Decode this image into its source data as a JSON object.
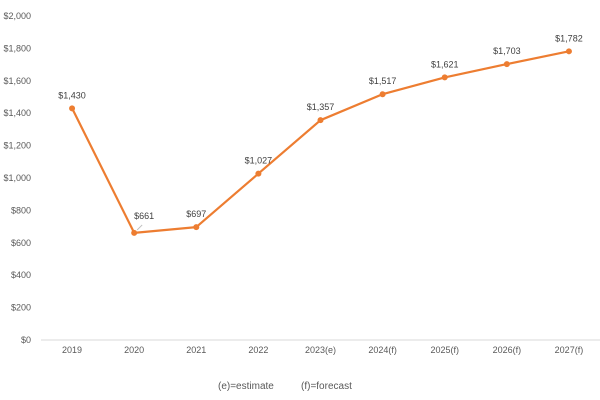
{
  "chart_data": {
    "type": "line",
    "categories": [
      "2019",
      "2020",
      "2021",
      "2022",
      "2023(e)",
      "2024(f)",
      "2025(f)",
      "2026(f)",
      "2027(f)"
    ],
    "series": [
      {
        "values": [
          1430,
          661,
          697,
          1027,
          1357,
          1517,
          1621,
          1703,
          1782
        ],
        "data_labels": [
          "$1,430",
          "$661",
          "$697",
          "$1,027",
          "$1,357",
          "$1,517",
          "$1,621",
          "$1,703",
          "$1,782"
        ],
        "color": "#ED7D31"
      }
    ],
    "ylim": [
      0,
      2000
    ],
    "y_ticks": [
      0,
      200,
      400,
      600,
      800,
      1000,
      1200,
      1400,
      1600,
      1800,
      2000
    ],
    "y_tick_labels": [
      "$0",
      "$200",
      "$400",
      "$600",
      "$800",
      "$1,000",
      "$1,200",
      "$1,400",
      "$1,600",
      "$1,800",
      "$2,000"
    ],
    "grid": false,
    "axis_color": "#D9D9D9",
    "footnotes": [
      "(e)=estimate",
      "(f)=forecast"
    ]
  }
}
